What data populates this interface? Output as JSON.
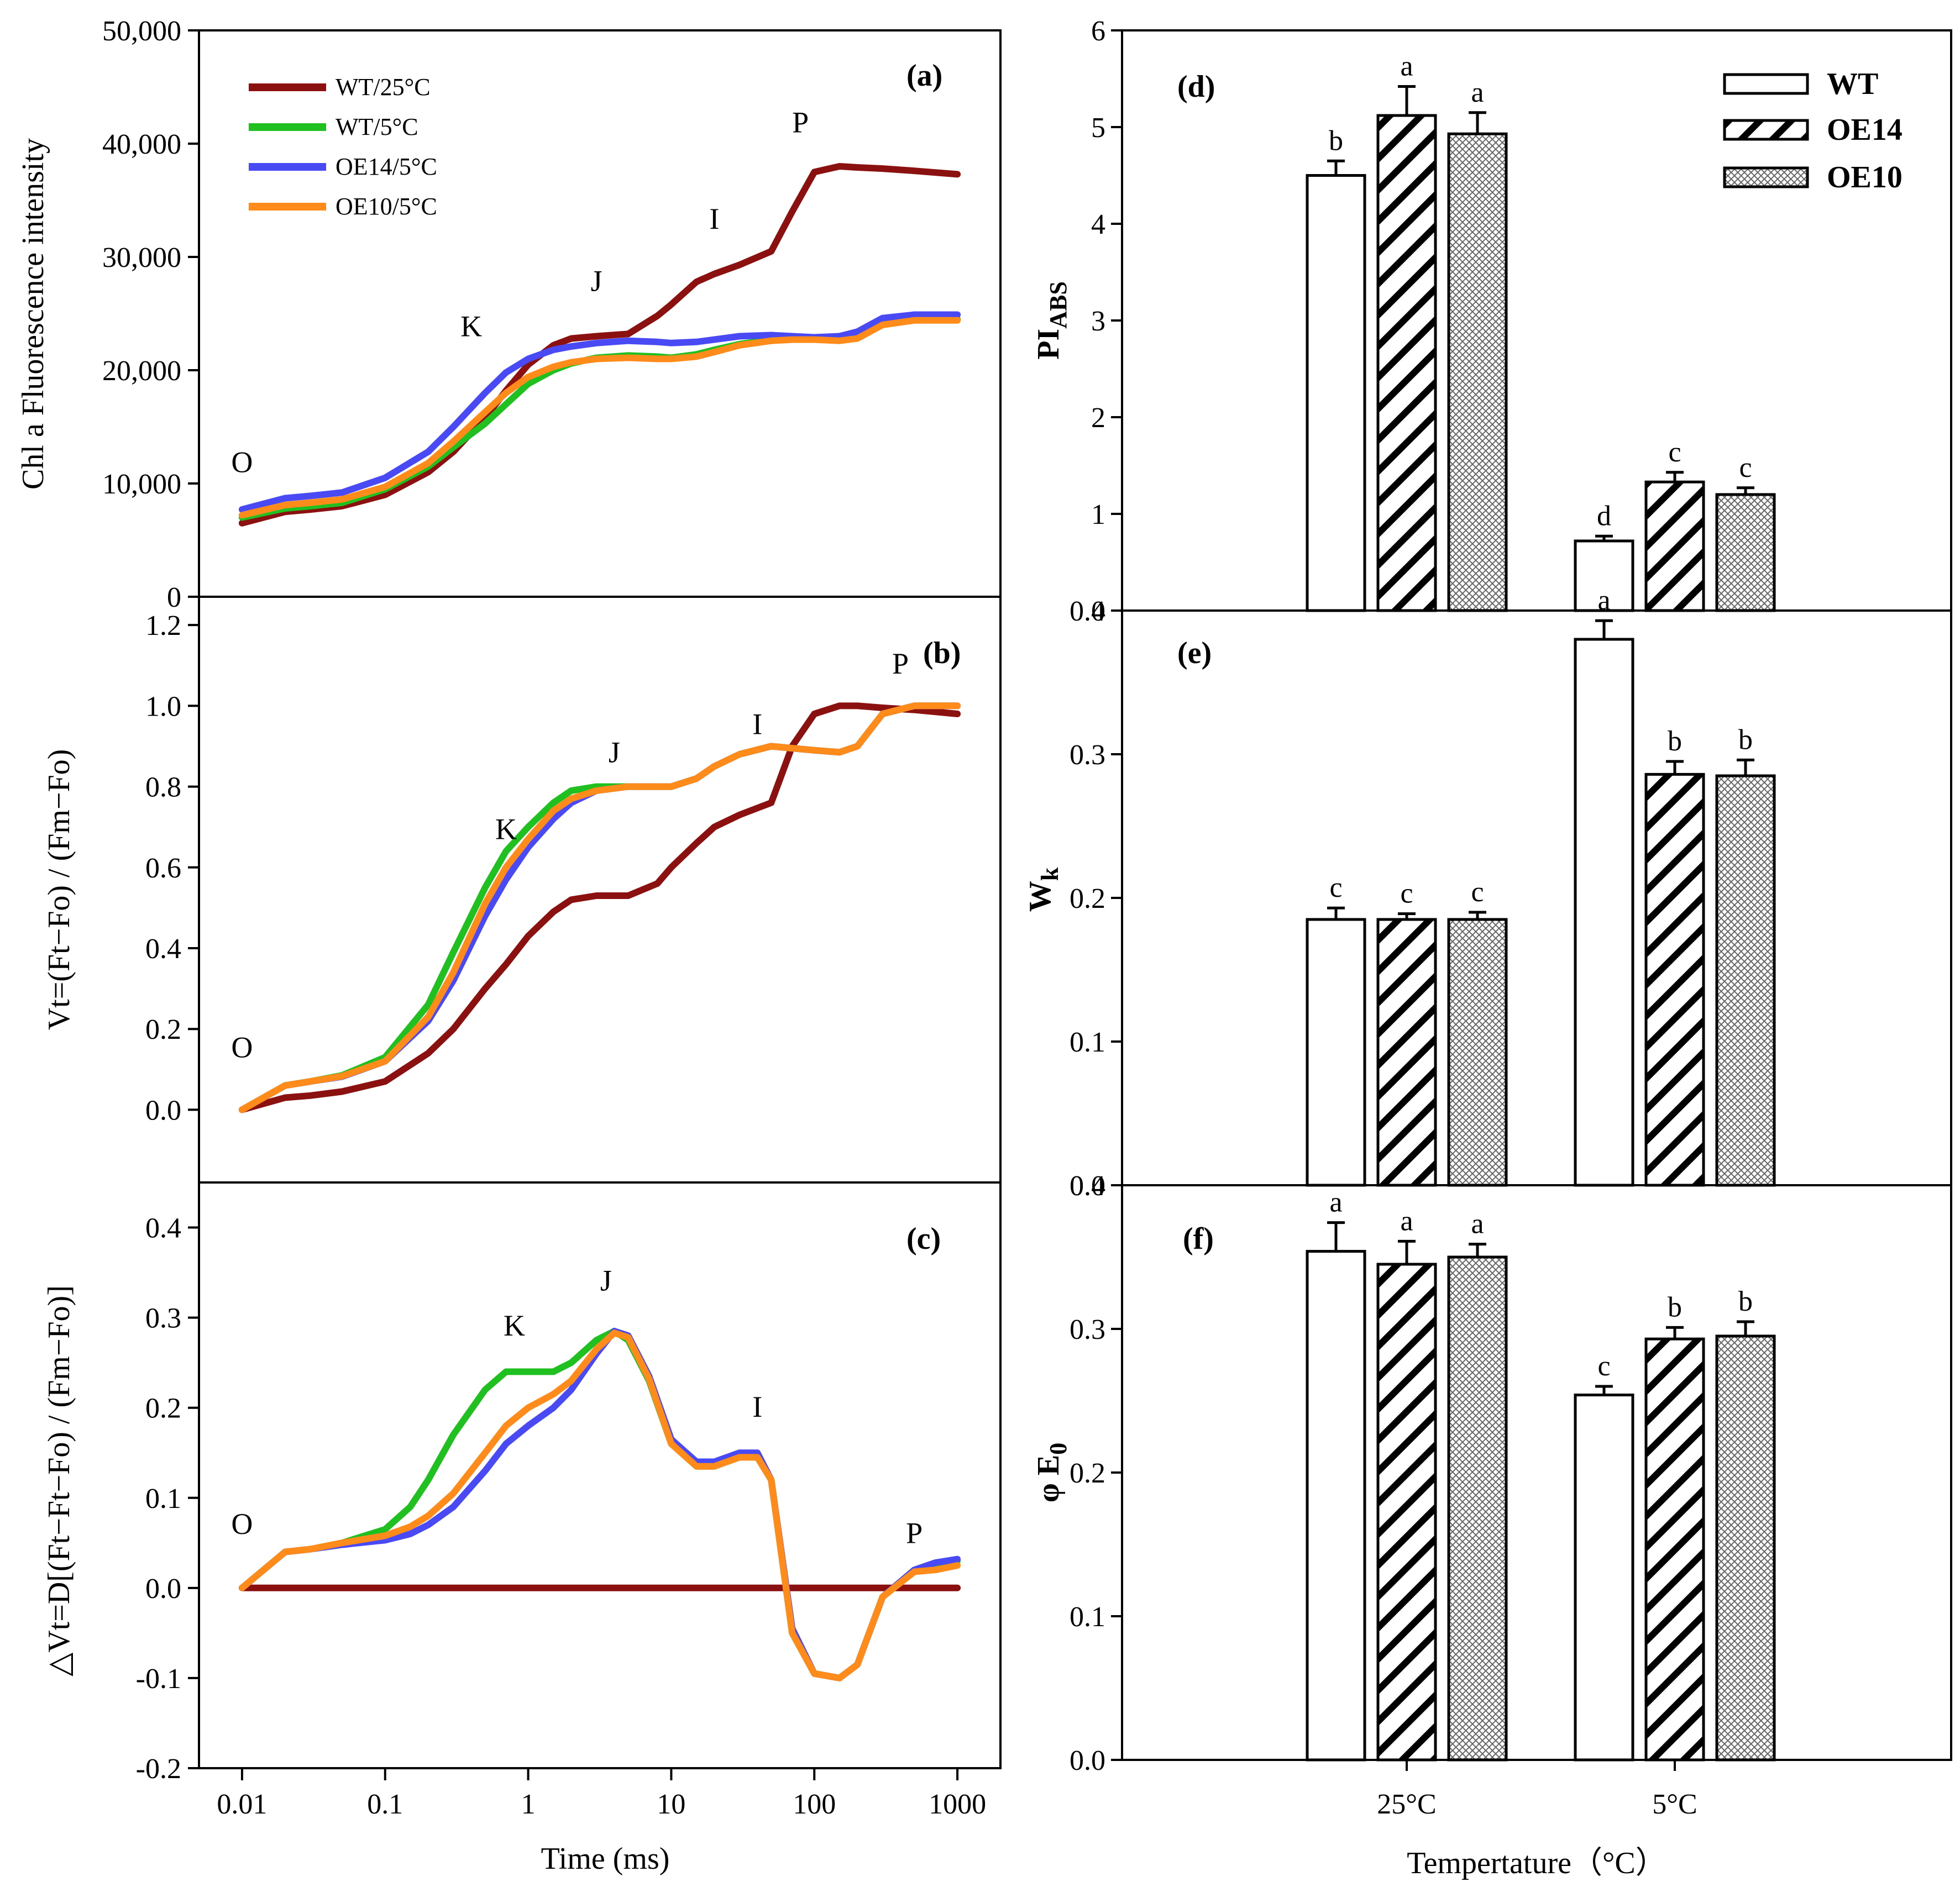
{
  "colors": {
    "wt25": "#8B1010",
    "wt5": "#1FC01F",
    "oe14_5": "#4A4AF5",
    "oe10_5": "#FF8C1A"
  },
  "left_xaxis": {
    "ticks": [
      "0.01",
      "0.1",
      "1",
      "10",
      "100",
      "1000"
    ],
    "label": "Time (ms)"
  },
  "right_xaxis": {
    "ticks": [
      "25°C",
      "5°C"
    ],
    "label": "Tempertature（°C）"
  },
  "chart_data": [
    {
      "id": "a",
      "panel_label": "(a)",
      "type": "line",
      "ylabel": "Chl a Fluorescence intensity",
      "yticks": [
        "0",
        "10,000",
        "20,000",
        "30,000",
        "40,000",
        "50,000"
      ],
      "ylim": [
        0,
        50000
      ],
      "xscale": "log",
      "xlim": [
        0.005,
        2000
      ],
      "legend": [
        "WT/25°C",
        "WT/5°C",
        "OE14/5°C",
        "OE10/5°C"
      ],
      "points": [
        {
          "label": "O",
          "x": 0.01,
          "y": 11000
        },
        {
          "label": "K",
          "x": 0.4,
          "y": 23000
        },
        {
          "label": "J",
          "x": 3,
          "y": 27000
        },
        {
          "label": "I",
          "x": 20,
          "y": 32500
        },
        {
          "label": "P",
          "x": 80,
          "y": 41000
        }
      ],
      "series": [
        {
          "name": "WT/25°C",
          "x": [
            0.01,
            0.02,
            0.03,
            0.05,
            0.1,
            0.2,
            0.3,
            0.5,
            0.7,
            1,
            1.5,
            2,
            3,
            5,
            8,
            10,
            15,
            20,
            30,
            50,
            70,
            100,
            150,
            200,
            300,
            500,
            1000
          ],
          "y": [
            6500,
            7500,
            7700,
            8000,
            9000,
            11000,
            12800,
            15800,
            18200,
            20500,
            22200,
            22800,
            23000,
            23200,
            24800,
            25800,
            27800,
            28500,
            29300,
            30500,
            34000,
            37500,
            38000,
            37900,
            37800,
            37600,
            37300
          ]
        },
        {
          "name": "WT/5°C",
          "x": [
            0.01,
            0.02,
            0.03,
            0.05,
            0.1,
            0.2,
            0.3,
            0.5,
            0.7,
            1,
            1.5,
            2,
            3,
            5,
            8,
            10,
            15,
            20,
            30,
            50,
            70,
            100,
            150,
            200,
            300,
            500,
            1000
          ],
          "y": [
            7000,
            7800,
            8000,
            8300,
            9500,
            11500,
            13200,
            15300,
            17000,
            18800,
            20000,
            20600,
            21100,
            21300,
            21200,
            21100,
            21400,
            21800,
            22300,
            22700,
            22800,
            22800,
            22700,
            22900,
            24000,
            24500,
            24500
          ]
        },
        {
          "name": "OE14/5°C",
          "x": [
            0.01,
            0.02,
            0.03,
            0.05,
            0.1,
            0.2,
            0.3,
            0.5,
            0.7,
            1,
            1.5,
            2,
            3,
            5,
            8,
            10,
            15,
            20,
            30,
            50,
            70,
            100,
            150,
            200,
            300,
            500,
            1000
          ],
          "y": [
            7700,
            8700,
            8900,
            9200,
            10500,
            12800,
            15000,
            18000,
            19800,
            21000,
            21800,
            22100,
            22400,
            22600,
            22500,
            22400,
            22500,
            22700,
            23000,
            23100,
            23000,
            22900,
            23000,
            23400,
            24600,
            24900,
            24900
          ]
        },
        {
          "name": "OE10/5°C",
          "x": [
            0.01,
            0.02,
            0.03,
            0.05,
            0.1,
            0.2,
            0.3,
            0.5,
            0.7,
            1,
            1.5,
            2,
            3,
            5,
            8,
            10,
            15,
            20,
            30,
            50,
            70,
            100,
            150,
            200,
            300,
            500,
            1000
          ],
          "y": [
            7200,
            8100,
            8300,
            8600,
            9700,
            11800,
            13700,
            16300,
            18000,
            19400,
            20300,
            20700,
            21000,
            21100,
            21000,
            21000,
            21200,
            21600,
            22200,
            22600,
            22700,
            22700,
            22600,
            22800,
            24000,
            24400,
            24400
          ]
        }
      ]
    },
    {
      "id": "b",
      "panel_label": "(b)",
      "type": "line",
      "ylabel": "Vt=(Ft−Fo) / (Fm−Fo)",
      "yticks": [
        "0.0",
        "0.2",
        "0.4",
        "0.6",
        "0.8",
        "1.0",
        "1.2"
      ],
      "ylim": [
        -0.18,
        1.27
      ],
      "xscale": "log",
      "xlim": [
        0.005,
        2000
      ],
      "points": [
        {
          "label": "O",
          "x": 0.01,
          "y": 0.13
        },
        {
          "label": "K",
          "x": 0.7,
          "y": 0.67
        },
        {
          "label": "J",
          "x": 4,
          "y": 0.86
        },
        {
          "label": "I",
          "x": 40,
          "y": 0.93
        },
        {
          "label": "P",
          "x": 400,
          "y": 1.08
        }
      ],
      "series": [
        {
          "name": "WT/25°C",
          "x": [
            0.01,
            0.02,
            0.03,
            0.05,
            0.1,
            0.2,
            0.3,
            0.5,
            0.7,
            1,
            1.5,
            2,
            3,
            5,
            8,
            10,
            15,
            20,
            30,
            50,
            70,
            100,
            150,
            200,
            300,
            500,
            1000
          ],
          "y": [
            0.0,
            0.03,
            0.035,
            0.045,
            0.07,
            0.14,
            0.2,
            0.3,
            0.36,
            0.43,
            0.49,
            0.52,
            0.53,
            0.53,
            0.56,
            0.6,
            0.66,
            0.7,
            0.73,
            0.76,
            0.9,
            0.98,
            1.0,
            1.0,
            0.995,
            0.99,
            0.98
          ]
        },
        {
          "name": "WT/5°C",
          "x": [
            0.01,
            0.02,
            0.03,
            0.05,
            0.1,
            0.2,
            0.3,
            0.5,
            0.7,
            1,
            1.5,
            2,
            3,
            5,
            8,
            10,
            15,
            20,
            30,
            50,
            70,
            100,
            150,
            200,
            300,
            500,
            1000
          ],
          "y": [
            0.0,
            0.06,
            0.07,
            0.085,
            0.13,
            0.26,
            0.39,
            0.55,
            0.64,
            0.7,
            0.76,
            0.79,
            0.8,
            0.8,
            0.8,
            0.8,
            0.82,
            0.85,
            0.88,
            0.9,
            0.895,
            0.89,
            0.885,
            0.9,
            0.98,
            1.0,
            1.0
          ]
        },
        {
          "name": "OE14/5°C",
          "x": [
            0.01,
            0.02,
            0.03,
            0.05,
            0.1,
            0.2,
            0.3,
            0.5,
            0.7,
            1,
            1.5,
            2,
            3,
            5,
            8,
            10,
            15,
            20,
            30,
            50,
            70,
            100,
            150,
            200,
            300,
            500,
            1000
          ],
          "y": [
            0.0,
            0.06,
            0.07,
            0.082,
            0.12,
            0.22,
            0.32,
            0.48,
            0.57,
            0.65,
            0.72,
            0.76,
            0.79,
            0.8,
            0.8,
            0.8,
            0.82,
            0.85,
            0.88,
            0.9,
            0.895,
            0.89,
            0.885,
            0.9,
            0.98,
            1.0,
            1.0
          ]
        },
        {
          "name": "OE10/5°C",
          "x": [
            0.01,
            0.02,
            0.03,
            0.05,
            0.1,
            0.2,
            0.3,
            0.5,
            0.7,
            1,
            1.5,
            2,
            3,
            5,
            8,
            10,
            15,
            20,
            30,
            50,
            70,
            100,
            150,
            200,
            300,
            500,
            1000
          ],
          "y": [
            0.0,
            0.06,
            0.07,
            0.083,
            0.12,
            0.23,
            0.34,
            0.51,
            0.6,
            0.67,
            0.74,
            0.77,
            0.79,
            0.8,
            0.8,
            0.8,
            0.82,
            0.85,
            0.88,
            0.9,
            0.895,
            0.89,
            0.885,
            0.9,
            0.98,
            1.0,
            1.0
          ]
        }
      ]
    },
    {
      "id": "c",
      "panel_label": "(c)",
      "type": "line",
      "ylabel": "△Vt=D[(Ft−Ft−Fo) / (Fm−Fo)]",
      "yticks": [
        "-0.2",
        "-0.1",
        "0.0",
        "0.1",
        "0.2",
        "0.3",
        "0.4"
      ],
      "ylim": [
        -0.2,
        0.45
      ],
      "xscale": "log",
      "xlim": [
        0.005,
        2000
      ],
      "points": [
        {
          "label": "O",
          "x": 0.01,
          "y": 0.06
        },
        {
          "label": "K",
          "x": 0.8,
          "y": 0.28
        },
        {
          "label": "J",
          "x": 3.5,
          "y": 0.33
        },
        {
          "label": "I",
          "x": 40,
          "y": 0.19
        },
        {
          "label": "P",
          "x": 500,
          "y": 0.05
        }
      ],
      "series": [
        {
          "name": "WT/25°C",
          "x": [
            0.01,
            1000
          ],
          "y": [
            0.0,
            0.0
          ]
        },
        {
          "name": "WT/5°C",
          "x": [
            0.01,
            0.02,
            0.03,
            0.05,
            0.1,
            0.15,
            0.2,
            0.3,
            0.5,
            0.7,
            1,
            1.5,
            2,
            3,
            4,
            5,
            7,
            10,
            15,
            20,
            30,
            40,
            50,
            70,
            100,
            150,
            200,
            300,
            500,
            700,
            1000
          ],
          "y": [
            0.0,
            0.04,
            0.043,
            0.05,
            0.065,
            0.09,
            0.12,
            0.17,
            0.22,
            0.24,
            0.24,
            0.24,
            0.25,
            0.275,
            0.285,
            0.275,
            0.23,
            0.16,
            0.135,
            0.135,
            0.145,
            0.145,
            0.12,
            -0.05,
            -0.095,
            -0.1,
            -0.085,
            -0.01,
            0.02,
            0.022,
            0.03
          ]
        },
        {
          "name": "OE14/5°C",
          "x": [
            0.01,
            0.02,
            0.03,
            0.05,
            0.1,
            0.15,
            0.2,
            0.3,
            0.5,
            0.7,
            1,
            1.5,
            2,
            3,
            4,
            5,
            7,
            10,
            15,
            20,
            30,
            40,
            50,
            70,
            100,
            150,
            200,
            300,
            500,
            700,
            1000
          ],
          "y": [
            0.0,
            0.04,
            0.043,
            0.048,
            0.053,
            0.06,
            0.07,
            0.09,
            0.13,
            0.16,
            0.18,
            0.2,
            0.22,
            0.26,
            0.285,
            0.28,
            0.235,
            0.165,
            0.14,
            0.14,
            0.15,
            0.15,
            0.12,
            -0.045,
            -0.095,
            -0.1,
            -0.085,
            -0.01,
            0.02,
            0.028,
            0.032
          ]
        },
        {
          "name": "OE10/5°C",
          "x": [
            0.01,
            0.02,
            0.03,
            0.05,
            0.1,
            0.15,
            0.2,
            0.3,
            0.5,
            0.7,
            1,
            1.5,
            2,
            3,
            4,
            5,
            7,
            10,
            15,
            20,
            30,
            40,
            50,
            70,
            100,
            150,
            200,
            300,
            500,
            700,
            1000
          ],
          "y": [
            0.0,
            0.04,
            0.043,
            0.05,
            0.058,
            0.068,
            0.08,
            0.105,
            0.15,
            0.18,
            0.2,
            0.215,
            0.23,
            0.265,
            0.283,
            0.278,
            0.232,
            0.16,
            0.135,
            0.135,
            0.145,
            0.145,
            0.12,
            -0.05,
            -0.095,
            -0.1,
            -0.085,
            -0.01,
            0.018,
            0.02,
            0.025
          ]
        }
      ]
    },
    {
      "id": "d",
      "panel_label": "(d)",
      "type": "bar",
      "ylabel": "PIABS",
      "ylabel_main": "PI",
      "ylabel_sub": "ABS",
      "yticks": [
        "0",
        "1",
        "2",
        "3",
        "4",
        "5",
        "6"
      ],
      "ylim": [
        0,
        6
      ],
      "categories": [
        "25°C",
        "5°C"
      ],
      "legend": [
        "WT",
        "OE14",
        "OE10"
      ],
      "series": [
        {
          "name": "WT",
          "values": [
            4.5,
            0.72
          ],
          "errors": [
            0.15,
            0.05
          ],
          "letters": [
            "b",
            "d"
          ]
        },
        {
          "name": "OE14",
          "values": [
            5.12,
            1.33
          ],
          "errors": [
            0.3,
            0.1
          ],
          "letters": [
            "a",
            "c"
          ]
        },
        {
          "name": "OE10",
          "values": [
            4.93,
            1.2
          ],
          "errors": [
            0.22,
            0.07
          ],
          "letters": [
            "a",
            "c"
          ]
        }
      ]
    },
    {
      "id": "e",
      "panel_label": "(e)",
      "type": "bar",
      "ylabel": "Wk",
      "ylabel_main": "W",
      "ylabel_sub": "k",
      "yticks": [
        "0.0",
        "0.1",
        "0.2",
        "0.3",
        "0.4"
      ],
      "ylim": [
        0,
        0.4
      ],
      "categories": [
        "25°C",
        "5°C"
      ],
      "series": [
        {
          "name": "WT",
          "values": [
            0.185,
            0.38
          ],
          "errors": [
            0.008,
            0.013
          ],
          "letters": [
            "c",
            "a"
          ]
        },
        {
          "name": "OE14",
          "values": [
            0.185,
            0.286
          ],
          "errors": [
            0.004,
            0.009
          ],
          "letters": [
            "c",
            "b"
          ]
        },
        {
          "name": "OE10",
          "values": [
            0.185,
            0.285
          ],
          "errors": [
            0.005,
            0.011
          ],
          "letters": [
            "c",
            "b"
          ]
        }
      ]
    },
    {
      "id": "f",
      "panel_label": "(f)",
      "type": "bar",
      "ylabel": "φ E0",
      "ylabel_main": "φ E",
      "ylabel_sub": "0",
      "yticks": [
        "0.0",
        "0.1",
        "0.2",
        "0.3",
        "0.4"
      ],
      "ylim": [
        0,
        0.4
      ],
      "categories": [
        "25°C",
        "5°C"
      ],
      "series": [
        {
          "name": "WT",
          "values": [
            0.354,
            0.254
          ],
          "errors": [
            0.02,
            0.006
          ],
          "letters": [
            "a",
            "c"
          ]
        },
        {
          "name": "OE14",
          "values": [
            0.345,
            0.293
          ],
          "errors": [
            0.016,
            0.008
          ],
          "letters": [
            "a",
            "b"
          ]
        },
        {
          "name": "OE10",
          "values": [
            0.35,
            0.295
          ],
          "errors": [
            0.009,
            0.01
          ],
          "letters": [
            "a",
            "b"
          ]
        }
      ]
    }
  ]
}
